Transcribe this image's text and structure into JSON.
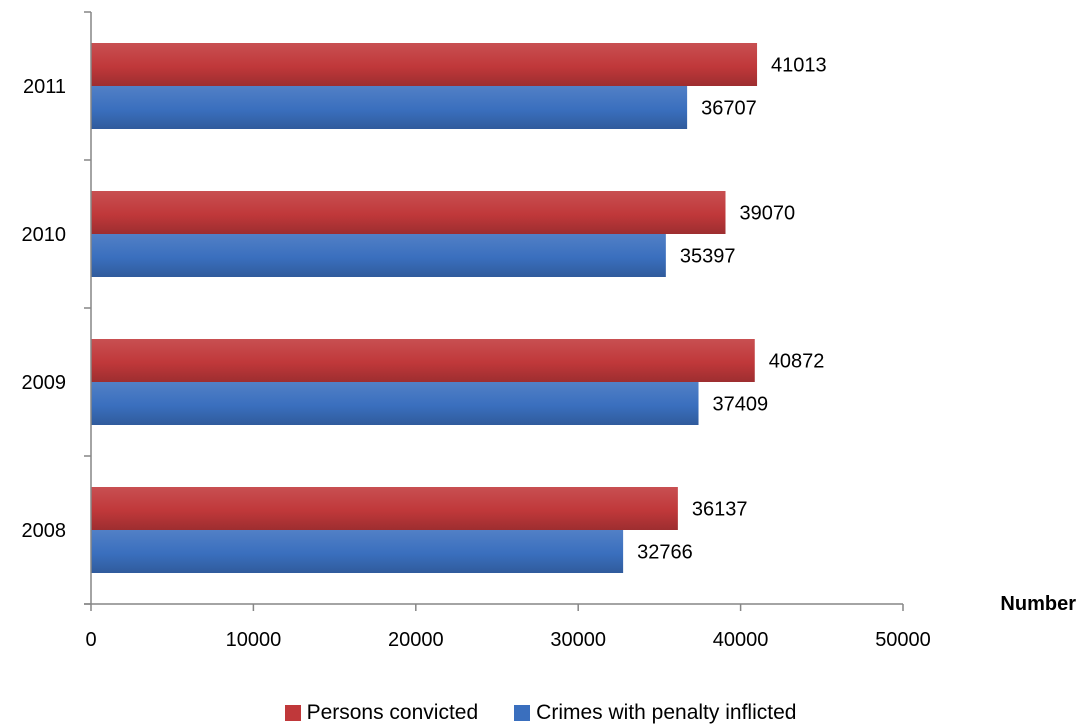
{
  "chart_data": {
    "type": "bar",
    "orientation": "horizontal",
    "categories": [
      "2008",
      "2009",
      "2010",
      "2011"
    ],
    "series": [
      {
        "name": "Persons convicted",
        "values": [
          36137,
          40872,
          39070,
          41013
        ],
        "color": "#c0383a"
      },
      {
        "name": "Crimes with penalty inflicted",
        "values": [
          32766,
          37409,
          35397,
          36707
        ],
        "color": "#3a6fbe"
      }
    ],
    "title": "",
    "xlabel": "Number",
    "ylabel": "",
    "xlim": [
      0,
      50000
    ],
    "xticks": [
      0,
      10000,
      20000,
      30000,
      40000,
      50000
    ],
    "grid": false,
    "legend_position": "bottom",
    "data_labels": true
  }
}
